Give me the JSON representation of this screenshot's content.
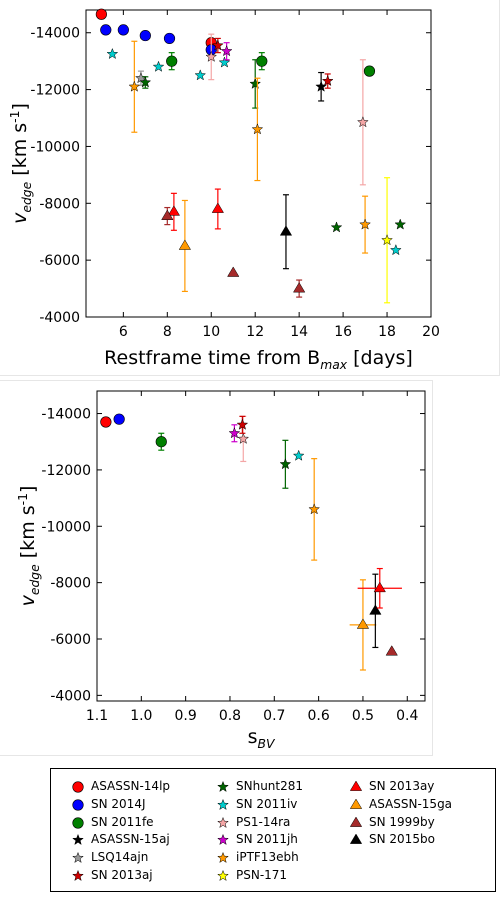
{
  "chart_data": [
    {
      "type": "scatter",
      "title": "",
      "xlabel": "Restframe time from B",
      "xlabel_sub": "max",
      "xlabel_suffix": " [days]",
      "ylabel": "v",
      "ylabel_sub": "edge",
      "ylabel_suffix": " [km s",
      "ylabel_sup": "-1",
      "ylabel_end": "]",
      "xlim": [
        4.3,
        20
      ],
      "ylim": [
        -4000,
        -14800
      ],
      "xticks": [
        "6",
        "8",
        "10",
        "12",
        "14",
        "16",
        "18",
        "20"
      ],
      "yticks": [
        "-14000",
        "-12000",
        "-10000",
        "-8000",
        "-6000",
        "-4000"
      ],
      "series": [
        {
          "name": "ASASSN-14lp",
          "marker": "circle",
          "color": "#ff0000",
          "points": [
            {
              "x": 5.0,
              "y": -14650
            },
            {
              "x": 10.0,
              "y": -13650
            }
          ]
        },
        {
          "name": "SN 2014J",
          "marker": "circle",
          "color": "#0000ff",
          "points": [
            {
              "x": 5.2,
              "y": -14100
            },
            {
              "x": 6.0,
              "y": -14100
            },
            {
              "x": 7.0,
              "y": -13900
            },
            {
              "x": 8.1,
              "y": -13800
            },
            {
              "x": 10.0,
              "y": -13400
            }
          ]
        },
        {
          "name": "SN 2011fe",
          "marker": "circle",
          "color": "#008000",
          "points": [
            {
              "x": 8.2,
              "y": -13000,
              "err": 300
            },
            {
              "x": 12.3,
              "y": -13000,
              "err": 300
            },
            {
              "x": 17.2,
              "y": -12650
            }
          ]
        },
        {
          "name": "ASASSN-15aj",
          "marker": "star",
          "color": "#000000",
          "points": [
            {
              "x": 15.0,
              "y": -12100,
              "err": 500
            }
          ]
        },
        {
          "name": "LSQ14ajn",
          "marker": "star",
          "color": "#999999",
          "points": [
            {
              "x": 6.8,
              "y": -12400,
              "err": 250
            }
          ]
        },
        {
          "name": "SN 2013aj",
          "marker": "star",
          "color": "#cc0000",
          "points": [
            {
              "x": 10.3,
              "y": -13550,
              "err": 250
            },
            {
              "x": 15.3,
              "y": -12300,
              "err": 250
            }
          ]
        },
        {
          "name": "SNhunt281",
          "marker": "star",
          "color": "#006400",
          "points": [
            {
              "x": 7.0,
              "y": -12250,
              "err": 200
            },
            {
              "x": 12.0,
              "y": -12200,
              "err": 850
            },
            {
              "x": 15.7,
              "y": -7150
            },
            {
              "x": 18.6,
              "y": -7250
            }
          ]
        },
        {
          "name": "SN 2011iv",
          "marker": "star",
          "color": "#00cccc",
          "points": [
            {
              "x": 5.5,
              "y": -13250
            },
            {
              "x": 7.6,
              "y": -12800
            },
            {
              "x": 9.5,
              "y": -12500
            },
            {
              "x": 10.6,
              "y": -12950
            },
            {
              "x": 18.4,
              "y": -6350
            }
          ]
        },
        {
          "name": "PS1-14ra",
          "marker": "star",
          "color": "#f4a6a6",
          "points": [
            {
              "x": 10.0,
              "y": -13150,
              "err": 800
            },
            {
              "x": 16.9,
              "y": -10850,
              "err": 2200
            }
          ]
        },
        {
          "name": "SN 2011jh",
          "marker": "star",
          "color": "#cc00cc",
          "points": [
            {
              "x": 10.7,
              "y": -13350,
              "err": 300
            }
          ]
        },
        {
          "name": "iPTF13ebh",
          "marker": "star",
          "color": "#ff9900",
          "points": [
            {
              "x": 6.5,
              "y": -12100,
              "err": 1600
            },
            {
              "x": 12.1,
              "y": -10600,
              "err": 1800
            },
            {
              "x": 17.0,
              "y": -7250,
              "err": 1000
            }
          ]
        },
        {
          "name": "PSN-171",
          "marker": "star",
          "color": "#ffff00",
          "points": [
            {
              "x": 18.0,
              "y": -6700,
              "err": 2200
            }
          ]
        },
        {
          "name": "SN 2013ay",
          "marker": "triangle",
          "color": "#ff0000",
          "points": [
            {
              "x": 8.3,
              "y": -7700,
              "err": 650
            },
            {
              "x": 10.3,
              "y": -7800,
              "err": 700
            }
          ]
        },
        {
          "name": "ASASSN-15ga",
          "marker": "triangle",
          "color": "#ff9900",
          "points": [
            {
              "x": 8.8,
              "y": -6500,
              "err": 1600
            }
          ]
        },
        {
          "name": "SN 1999by",
          "marker": "triangle",
          "color": "#a52a2a",
          "points": [
            {
              "x": 8.0,
              "y": -7550,
              "err": 300
            },
            {
              "x": 11.0,
              "y": -5550
            },
            {
              "x": 14.0,
              "y": -5000,
              "err": 300
            }
          ]
        },
        {
          "name": "SN 2015bo",
          "marker": "triangle",
          "color": "#000000",
          "points": [
            {
              "x": 13.4,
              "y": -7000,
              "err": 1300
            }
          ]
        }
      ]
    },
    {
      "type": "scatter",
      "title": "",
      "xlabel": "s",
      "xlabel_sub": "BV",
      "ylabel": "v",
      "ylabel_sub": "edge",
      "ylabel_suffix": " [km s",
      "ylabel_sup": "-1",
      "ylabel_end": "]",
      "xlim": [
        1.1,
        0.36
      ],
      "ylim": [
        -3800,
        -14800
      ],
      "xticks": [
        "1.1",
        "1.0",
        "0.9",
        "0.8",
        "0.7",
        "0.6",
        "0.5",
        "0.4"
      ],
      "yticks": [
        "-14000",
        "-12000",
        "-10000",
        "-8000",
        "-6000",
        "-4000"
      ],
      "series": [
        {
          "name": "ASASSN-14lp",
          "marker": "circle",
          "color": "#ff0000",
          "points": [
            {
              "x": 1.08,
              "y": -13700
            }
          ]
        },
        {
          "name": "SN 2014J",
          "marker": "circle",
          "color": "#0000ff",
          "points": [
            {
              "x": 1.05,
              "y": -13800
            }
          ]
        },
        {
          "name": "SN 2011fe",
          "marker": "circle",
          "color": "#008000",
          "points": [
            {
              "x": 0.955,
              "y": -13000,
              "err": 300
            }
          ]
        },
        {
          "name": "SN 2011jh",
          "marker": "star",
          "color": "#cc00cc",
          "points": [
            {
              "x": 0.79,
              "y": -13300,
              "err": 300
            }
          ]
        },
        {
          "name": "PS1-14ra",
          "marker": "star",
          "color": "#f4a6a6",
          "points": [
            {
              "x": 0.77,
              "y": -13100,
              "err": 800
            }
          ]
        },
        {
          "name": "SN 2013aj",
          "marker": "star",
          "color": "#cc0000",
          "points": [
            {
              "x": 0.772,
              "y": -13600,
              "err": 300
            }
          ]
        },
        {
          "name": "SNhunt281",
          "marker": "star",
          "color": "#006400",
          "points": [
            {
              "x": 0.675,
              "y": -12200,
              "err": 850
            }
          ]
        },
        {
          "name": "SN 2011iv",
          "marker": "star",
          "color": "#00cccc",
          "points": [
            {
              "x": 0.645,
              "y": -12500
            }
          ]
        },
        {
          "name": "iPTF13ebh",
          "marker": "star",
          "color": "#ff9900",
          "points": [
            {
              "x": 0.61,
              "y": -10600,
              "err": 1800
            }
          ]
        },
        {
          "name": "ASASSN-15ga",
          "marker": "triangle",
          "color": "#ff9900",
          "points": [
            {
              "x": 0.5,
              "y": -6500,
              "err": 1600,
              "xerr": 0.03
            }
          ]
        },
        {
          "name": "SN 2015bo",
          "marker": "triangle",
          "color": "#000000",
          "points": [
            {
              "x": 0.472,
              "y": -7000,
              "err": 1300
            }
          ]
        },
        {
          "name": "SN 2013ay",
          "marker": "triangle",
          "color": "#ff0000",
          "points": [
            {
              "x": 0.462,
              "y": -7800,
              "err": 700,
              "xerr": 0.05
            }
          ]
        },
        {
          "name": "SN 1999by",
          "marker": "triangle",
          "color": "#a52a2a",
          "points": [
            {
              "x": 0.435,
              "y": -5550
            }
          ]
        }
      ]
    }
  ],
  "legend": {
    "placement": "bottom",
    "entries": [
      {
        "label": "ASASSN-14lp",
        "marker": "circle",
        "color": "#ff0000"
      },
      {
        "label": "SN 2014J",
        "marker": "circle",
        "color": "#0000ff"
      },
      {
        "label": "SN 2011fe",
        "marker": "circle",
        "color": "#008000"
      },
      {
        "label": "ASASSN-15aj",
        "marker": "star",
        "color": "#000000"
      },
      {
        "label": "LSQ14ajn",
        "marker": "star",
        "color": "#999999"
      },
      {
        "label": "SN 2013aj",
        "marker": "star",
        "color": "#cc0000"
      },
      {
        "label": "SNhunt281",
        "marker": "star",
        "color": "#006400"
      },
      {
        "label": "SN 2011iv",
        "marker": "star",
        "color": "#00cccc"
      },
      {
        "label": "PS1-14ra",
        "marker": "star",
        "color": "#f4a6a6"
      },
      {
        "label": "SN 2011jh",
        "marker": "star",
        "color": "#cc00cc"
      },
      {
        "label": "iPTF13ebh",
        "marker": "star",
        "color": "#ff9900"
      },
      {
        "label": "PSN-171",
        "marker": "star",
        "color": "#ffff00"
      },
      {
        "label": "SN 2013ay",
        "marker": "triangle",
        "color": "#ff0000"
      },
      {
        "label": "ASASSN-15ga",
        "marker": "triangle",
        "color": "#ff9900"
      },
      {
        "label": "SN 1999by",
        "marker": "triangle",
        "color": "#a52a2a"
      },
      {
        "label": "SN 2015bo",
        "marker": "triangle",
        "color": "#000000"
      }
    ]
  }
}
